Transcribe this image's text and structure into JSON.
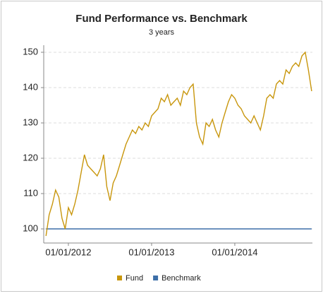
{
  "chart_data": {
    "type": "line",
    "title": "Fund Performance vs. Benchmark",
    "subtitle": "3 years",
    "categories": [
      null,
      null,
      null,
      null,
      null,
      null,
      null,
      "01/01/2012",
      null,
      null,
      null,
      null,
      null,
      null,
      null,
      null,
      null,
      null,
      null,
      null,
      null,
      null,
      null,
      null,
      null,
      null,
      null,
      null,
      null,
      null,
      null,
      null,
      null,
      "01/01/2013",
      null,
      null,
      null,
      null,
      null,
      null,
      null,
      null,
      null,
      null,
      null,
      null,
      null,
      null,
      null,
      null,
      null,
      null,
      null,
      null,
      null,
      null,
      null,
      null,
      null,
      "01/01/2014",
      null,
      null,
      null,
      null,
      null,
      null,
      null,
      null,
      null,
      null,
      null,
      null,
      null,
      null,
      null,
      null,
      null,
      null,
      null,
      null,
      null,
      null,
      null,
      null
    ],
    "series": [
      {
        "name": "Fund",
        "color": "#c8960c",
        "values": [
          98,
          104,
          107,
          111,
          109,
          103,
          100,
          106,
          104,
          107,
          111,
          116,
          121,
          118,
          117,
          116,
          115,
          117,
          121,
          112,
          108,
          113,
          115,
          118,
          121,
          124,
          126,
          128,
          127,
          129,
          128,
          130,
          129,
          132,
          133,
          134,
          137,
          136,
          138,
          135,
          136,
          137,
          135,
          139,
          138,
          140,
          141,
          130,
          126,
          124,
          130,
          129,
          131,
          128,
          126,
          130,
          133,
          136,
          138,
          137,
          135,
          134,
          132,
          131,
          130,
          132,
          130,
          128,
          132,
          137,
          138,
          137,
          141,
          142,
          141,
          145,
          144,
          146,
          147,
          146,
          149,
          150,
          145,
          139
        ]
      },
      {
        "name": "Benchmark",
        "color": "#3d6fa8",
        "values": [
          100,
          100,
          100,
          100,
          100,
          100,
          100,
          100,
          100,
          100,
          100,
          100,
          100,
          100,
          100,
          100,
          100,
          100,
          100,
          100,
          100,
          100,
          100,
          100,
          100,
          100,
          100,
          100,
          100,
          100,
          100,
          100,
          100,
          100,
          100,
          100,
          100,
          100,
          100,
          100,
          100,
          100,
          100,
          100,
          100,
          100,
          100,
          100,
          100,
          100,
          100,
          100,
          100,
          100,
          100,
          100,
          100,
          100,
          100,
          100,
          100,
          100,
          100,
          100,
          100,
          100,
          100,
          100,
          100,
          100,
          100,
          100,
          100,
          100,
          100,
          100,
          100,
          100,
          100,
          100,
          100,
          100,
          100,
          100
        ]
      }
    ],
    "ylim": [
      96,
      152
    ],
    "yticks": [
      100,
      110,
      120,
      130,
      140,
      150
    ],
    "grid": true
  }
}
